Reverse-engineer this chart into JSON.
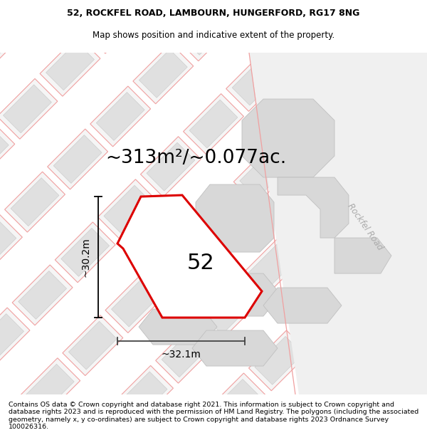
{
  "title_line1": "52, ROCKFEL ROAD, LAMBOURN, HUNGERFORD, RG17 8NG",
  "title_line2": "Map shows position and indicative extent of the property.",
  "area_text": "~313m²/~0.077ac.",
  "label_52": "52",
  "dim_vertical": "~30.2m",
  "dim_horizontal": "~32.1m",
  "road_label": "Rockfel Road",
  "footer_text": "Contains OS data © Crown copyright and database right 2021. This information is subject to Crown copyright and database rights 2023 and is reproduced with the permission of HM Land Registry. The polygons (including the associated geometry, namely x, y co-ordinates) are subject to Crown copyright and database rights 2023 Ordnance Survey 100026316.",
  "bg_color": "#f8f8f8",
  "title_fontsize": 9,
  "subtitle_fontsize": 8.5,
  "area_fontsize": 19,
  "label_fontsize": 22,
  "dim_fontsize": 10,
  "footer_fontsize": 6.8,
  "pink_edge": "#f0a0a0",
  "pink_edge2": "#e8b0b0",
  "gray_fill": "#e0e0e0",
  "gray_fill2": "#d8d8d8",
  "white_bg": "#ffffff",
  "road_line_color": "#e8c0c0"
}
